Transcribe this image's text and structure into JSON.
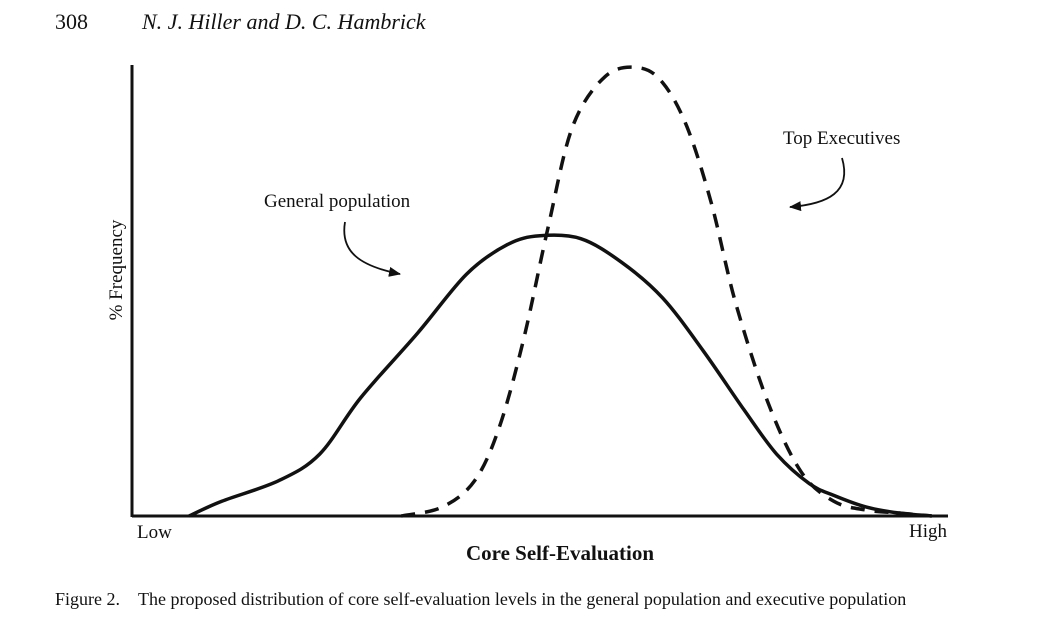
{
  "header": {
    "page_number": "308",
    "running_head": "N. J. Hiller and D. C. Hambrick"
  },
  "figure": {
    "caption_label": "Figure 2.",
    "caption_text": "The proposed distribution of core self-evaluation levels in the general population and executive population"
  },
  "chart_data": {
    "type": "line",
    "xlabel": "Core Self-Evaluation",
    "ylabel": "% Frequency",
    "x_tick_labels": [
      "Low",
      "High"
    ],
    "grid": false,
    "series": [
      {
        "name": "General population",
        "style": "solid",
        "x": [
          0.07,
          0.11,
          0.18,
          0.23,
          0.28,
          0.35,
          0.41,
          0.46,
          0.5,
          0.55,
          0.6,
          0.65,
          0.7,
          0.75,
          0.79,
          0.83,
          0.86,
          0.9,
          0.94,
          0.98
        ],
        "y": [
          0.0,
          0.05,
          0.12,
          0.21,
          0.4,
          0.62,
          0.82,
          0.92,
          0.95,
          0.94,
          0.86,
          0.74,
          0.56,
          0.36,
          0.21,
          0.11,
          0.07,
          0.03,
          0.01,
          0.0
        ]
      },
      {
        "name": "Top Executives",
        "style": "dashed",
        "x": [
          0.33,
          0.38,
          0.42,
          0.45,
          0.48,
          0.51,
          0.54,
          0.58,
          0.62,
          0.65,
          0.68,
          0.71,
          0.74,
          0.78,
          0.82,
          0.86,
          0.9,
          0.94,
          0.98
        ],
        "y": [
          0.0,
          0.03,
          0.12,
          0.3,
          0.6,
          0.98,
          1.32,
          1.49,
          1.52,
          1.47,
          1.32,
          1.06,
          0.72,
          0.38,
          0.15,
          0.05,
          0.02,
          0.01,
          0.0
        ]
      }
    ],
    "annotations": [
      {
        "text": "General population",
        "points_to": "General population"
      },
      {
        "text": "Top Executives",
        "points_to": "Top Executives"
      }
    ]
  }
}
